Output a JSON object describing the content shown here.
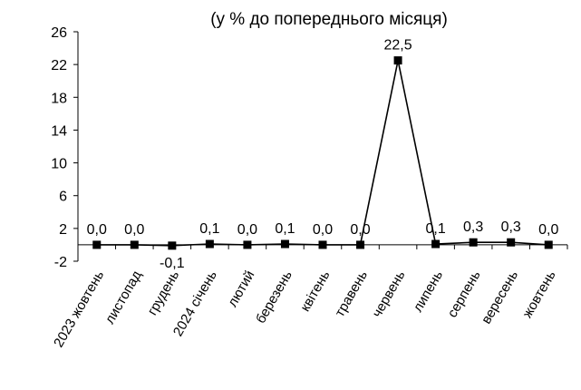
{
  "chart_data": {
    "type": "line",
    "title": "(у % до попереднього місяця)",
    "xlabel": "",
    "ylabel": "",
    "ylim": [
      -2,
      26
    ],
    "yticks": [
      -2,
      2,
      6,
      10,
      14,
      18,
      22,
      26
    ],
    "categories": [
      "2023 жовтень",
      "листопад",
      "грудень",
      "2024 січень",
      "лютий",
      "березень",
      "квітень",
      "травень",
      "червень",
      "липень",
      "серпень",
      "вересень",
      "жовтень"
    ],
    "values": [
      0.0,
      0.0,
      -0.1,
      0.1,
      0.0,
      0.1,
      0.0,
      0.0,
      22.5,
      0.1,
      0.3,
      0.3,
      0.0
    ],
    "data_labels": [
      "0,0",
      "0,0",
      "-0,1",
      "0,1",
      "0,0",
      "0,1",
      "0,0",
      "0,0",
      "22,5",
      "0,1",
      "0,3",
      "0,3",
      "0,0"
    ],
    "line_color": "#000000",
    "marker": "square",
    "grid": false,
    "legend": "none"
  }
}
